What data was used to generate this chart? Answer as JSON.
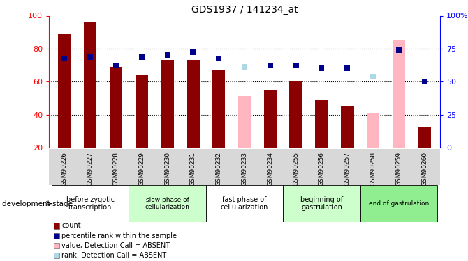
{
  "title": "GDS1937 / 141234_at",
  "samples": [
    "GSM90226",
    "GSM90227",
    "GSM90228",
    "GSM90229",
    "GSM90230",
    "GSM90231",
    "GSM90232",
    "GSM90233",
    "GSM90234",
    "GSM90255",
    "GSM90256",
    "GSM90257",
    "GSM90258",
    "GSM90259",
    "GSM90260"
  ],
  "bar_values": [
    89,
    96,
    69,
    64,
    73,
    73,
    67,
    51,
    55,
    60,
    49,
    45,
    41,
    85,
    32
  ],
  "bar_absent": [
    false,
    false,
    false,
    false,
    false,
    false,
    false,
    true,
    false,
    false,
    false,
    false,
    true,
    true,
    false
  ],
  "rank_values": [
    74,
    75,
    70,
    75,
    76,
    78,
    74,
    69,
    70,
    70,
    68,
    68,
    63,
    79,
    60
  ],
  "rank_absent": [
    false,
    false,
    false,
    false,
    false,
    false,
    false,
    true,
    false,
    false,
    false,
    false,
    true,
    false,
    false
  ],
  "ylim": [
    20,
    100
  ],
  "yticks": [
    20,
    40,
    60,
    80,
    100
  ],
  "yticklabels_left": [
    "20",
    "40",
    "60",
    "80",
    "100"
  ],
  "yticklabels_right": [
    "0",
    "25",
    "50",
    "75",
    "100%"
  ],
  "bar_color_present": "#8B0000",
  "bar_color_absent": "#FFB6C1",
  "rank_color_present": "#00008B",
  "rank_color_absent": "#ADD8E6",
  "rank_marker_size": 40,
  "groups": [
    {
      "label": "before zygotic\ntranscription",
      "start": 0,
      "end": 2,
      "color": "#ffffff",
      "fontsize": 7
    },
    {
      "label": "slow phase of\ncellularization",
      "start": 3,
      "end": 5,
      "color": "#ccffcc",
      "fontsize": 6.5
    },
    {
      "label": "fast phase of\ncellularization",
      "start": 6,
      "end": 8,
      "color": "#ffffff",
      "fontsize": 7
    },
    {
      "label": "beginning of\ngastrulation",
      "start": 9,
      "end": 11,
      "color": "#ccffcc",
      "fontsize": 7
    },
    {
      "label": "end of gastrulation",
      "start": 12,
      "end": 14,
      "color": "#90EE90",
      "fontsize": 6.5
    }
  ],
  "dev_stage_label": "development stage",
  "legend_items": [
    {
      "label": "count",
      "color": "#8B0000"
    },
    {
      "label": "percentile rank within the sample",
      "color": "#00008B"
    },
    {
      "label": "value, Detection Call = ABSENT",
      "color": "#FFB6C1"
    },
    {
      "label": "rank, Detection Call = ABSENT",
      "color": "#ADD8E6"
    }
  ],
  "grid_color": "black",
  "bar_width": 0.5,
  "rank_right_positions": [
    20,
    40,
    60,
    80,
    100
  ]
}
